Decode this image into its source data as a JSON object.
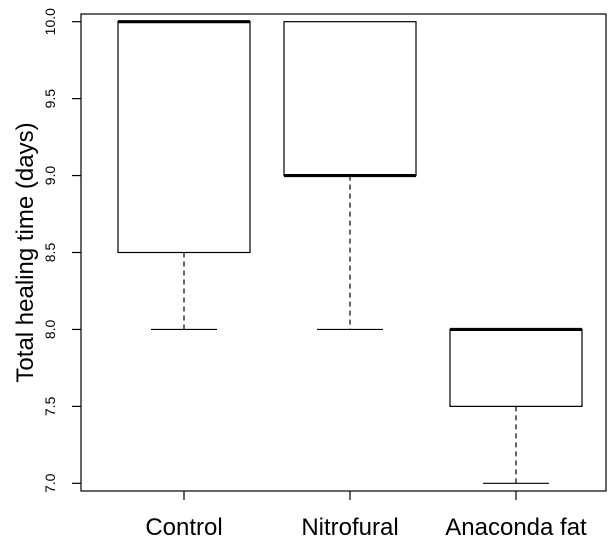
{
  "chart_data": {
    "type": "boxplot",
    "title": "",
    "xlabel": "",
    "ylabel": "Total healing time (days)",
    "ylim": [
      6.95,
      10.05
    ],
    "y_ticks": [
      "7.0",
      "7.5",
      "8.0",
      "8.5",
      "9.0",
      "9.5",
      "10.0"
    ],
    "y_tick_values": [
      7.0,
      7.5,
      8.0,
      8.5,
      9.0,
      9.5,
      10.0
    ],
    "categories": [
      "Control",
      "Nitrofural",
      "Anaconda fat"
    ],
    "boxes": [
      {
        "whisker_low": 8.0,
        "q1": 8.5,
        "median": 10.0,
        "q3": 10.0,
        "whisker_high": 10.0
      },
      {
        "whisker_low": 8.0,
        "q1": 9.0,
        "median": 9.0,
        "q3": 10.0,
        "whisker_high": 10.0
      },
      {
        "whisker_low": 7.0,
        "q1": 7.5,
        "median": 8.0,
        "q3": 8.0,
        "whisker_high": 8.0
      }
    ],
    "grid": false,
    "legend": "none"
  }
}
